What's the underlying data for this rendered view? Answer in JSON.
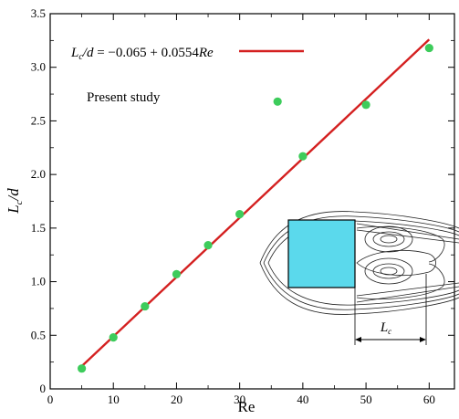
{
  "chart_data": {
    "type": "scatter",
    "xlabel": "Re",
    "ylabel_main": "L",
    "ylabel_sub": "c",
    "ylabel_rest": "/d",
    "xlim": [
      0,
      64
    ],
    "ylim": [
      0,
      3.5
    ],
    "xticks": [
      0,
      10,
      20,
      30,
      40,
      50,
      60
    ],
    "xtick_labels": [
      "0",
      "10",
      "20",
      "30",
      "40",
      "50",
      "60"
    ],
    "yticks": [
      0,
      0.5,
      1.0,
      1.5,
      2.0,
      2.5,
      3.0,
      3.5
    ],
    "ytick_labels": [
      "0",
      "0.5",
      "1.0",
      "1.5",
      "2.0",
      "2.5",
      "3.0",
      "3.5"
    ],
    "grid": false,
    "fit": {
      "intercept": -0.065,
      "slope": 0.0554,
      "x_range": [
        5,
        60
      ],
      "color": "#d42020",
      "equation_lhs_main": "L",
      "equation_lhs_sub": "c",
      "equation_lhs_rest": "/d",
      "equation_rhs_prefix": " = −0.065 + 0.0554",
      "equation_rhs_var": "Re"
    },
    "series": [
      {
        "name": "Present study",
        "color": "#3dcc5b",
        "points": [
          {
            "x": 5,
            "y": 0.19
          },
          {
            "x": 10,
            "y": 0.48
          },
          {
            "x": 15,
            "y": 0.77
          },
          {
            "x": 20,
            "y": 1.07
          },
          {
            "x": 25,
            "y": 1.34
          },
          {
            "x": 30,
            "y": 1.63
          },
          {
            "x": 36,
            "y": 2.68
          },
          {
            "x": 40,
            "y": 2.17
          },
          {
            "x": 50,
            "y": 2.65
          },
          {
            "x": 60,
            "y": 3.18
          }
        ]
      }
    ],
    "inset": {
      "label_main": "L",
      "label_sub": "c",
      "body_color": "#5bd9ec"
    }
  }
}
